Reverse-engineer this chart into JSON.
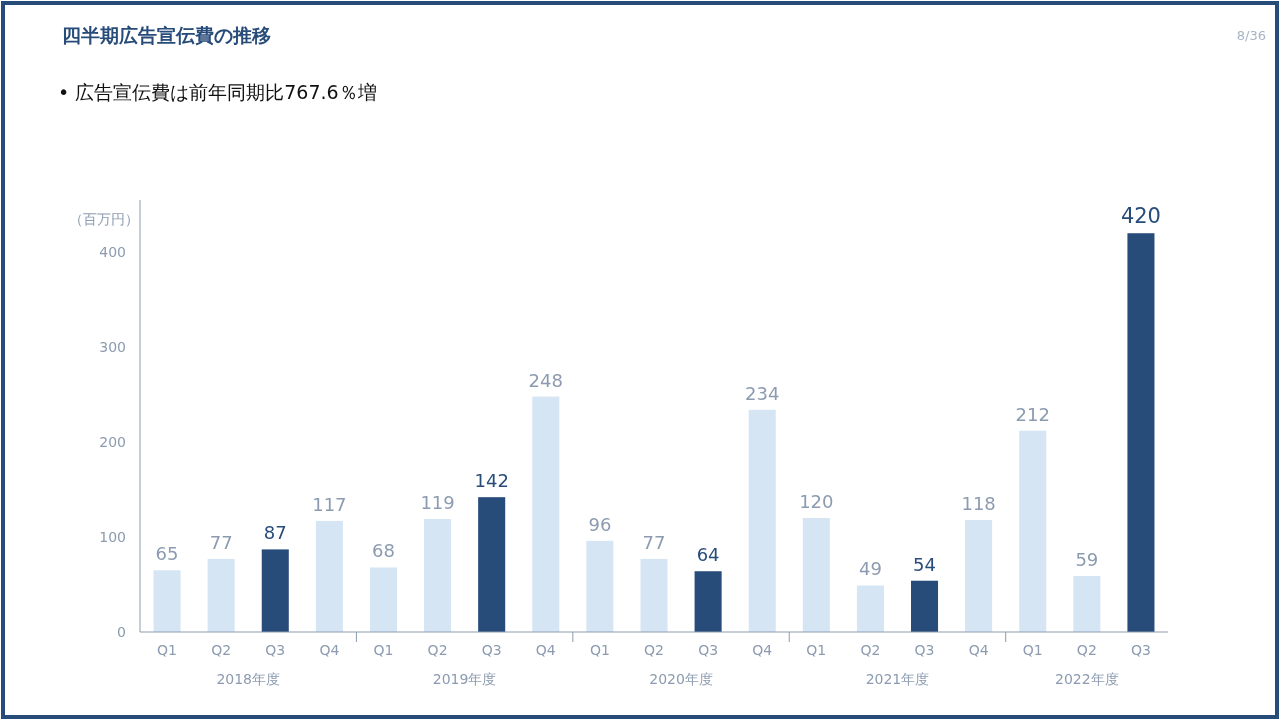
{
  "chart_data": {
    "type": "bar",
    "title": "四半期広告宣伝費の推移",
    "subtitle": "•  広告宣伝費は前年同期比767.6％増",
    "ylabel": "（百万円）",
    "categories": [
      "Q1",
      "Q2",
      "Q3",
      "Q4",
      "Q1",
      "Q2",
      "Q3",
      "Q4",
      "Q1",
      "Q2",
      "Q3",
      "Q4",
      "Q1",
      "Q2",
      "Q3",
      "Q4",
      "Q1",
      "Q2",
      "Q3"
    ],
    "values": [
      65,
      77,
      87,
      117,
      68,
      119,
      142,
      248,
      96,
      77,
      64,
      234,
      120,
      49,
      54,
      118,
      212,
      59,
      420
    ],
    "colors": [
      "#d6e5f4",
      "#d6e5f4",
      "#284c7a",
      "#d6e5f4",
      "#d6e5f4",
      "#d6e5f4",
      "#284c7a",
      "#d6e5f4",
      "#d6e5f4",
      "#d6e5f4",
      "#284c7a",
      "#d6e5f4",
      "#d6e5f4",
      "#d6e5f4",
      "#284c7a",
      "#d6e5f4",
      "#d6e5f4",
      "#d6e5f4",
      "#284c7a"
    ],
    "ylim": [
      0,
      455
    ],
    "yticks": [
      0,
      100,
      200,
      300,
      400
    ],
    "grid": false,
    "data_labels": true,
    "annotations": [
      "8/36",
      "2018年度",
      "2019年度",
      "2020年度",
      "2021年度",
      "2022年度"
    ]
  }
}
